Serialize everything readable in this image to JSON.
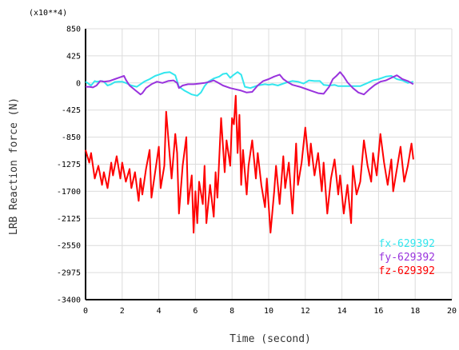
{
  "chart_data": {
    "type": "line",
    "title": "",
    "xlabel": "Time (second)",
    "ylabel": "LRB Reaction force (N)",
    "y_multiplier_label": "(x10**4)",
    "xlim": [
      0,
      20
    ],
    "ylim": [
      -3400,
      850
    ],
    "x_ticks": [
      "0",
      "2",
      "4",
      "6",
      "8",
      "10",
      "12",
      "14",
      "16",
      "18",
      "20"
    ],
    "x_tick_values": [
      0,
      2,
      4,
      6,
      8,
      10,
      12,
      14,
      16,
      18,
      20
    ],
    "y_ticks": [
      "850",
      "425",
      "0",
      "-425",
      "-850",
      "-1275",
      "-1700",
      "-2125",
      "-2550",
      "-2975",
      "-3400"
    ],
    "y_tick_values": [
      850,
      425,
      0,
      -425,
      -850,
      -1275,
      -1700,
      -2125,
      -2550,
      -2975,
      -3400
    ],
    "grid": true,
    "legend_position": "bottom-right",
    "series": [
      {
        "name": "fx-629392",
        "color": "#33e6ee",
        "x": [
          0,
          0.3,
          0.5,
          0.6,
          0.9,
          1.0,
          1.2,
          1.4,
          1.6,
          1.8,
          2.0,
          2.2,
          2.5,
          2.8,
          3.0,
          3.2,
          3.5,
          3.8,
          4.0,
          4.3,
          4.6,
          4.9,
          5.0,
          5.1,
          5.4,
          5.8,
          6.1,
          6.3,
          6.5,
          6.7,
          7.0,
          7.3,
          7.5,
          7.7,
          7.9,
          8.1,
          8.3,
          8.5,
          8.7,
          9.0,
          9.4,
          9.8,
          10.0,
          10.2,
          10.5,
          11.0,
          11.3,
          11.6,
          11.9,
          12.2,
          12.5,
          12.8,
          13.0,
          13.3,
          13.6,
          13.8,
          14.2,
          14.6,
          15.0,
          15.4,
          15.7,
          16.0,
          16.4,
          16.7,
          17.0,
          17.3,
          17.6,
          17.9
        ],
        "y": [
          20,
          -40,
          30,
          20,
          30,
          20,
          -40,
          -20,
          15,
          20,
          20,
          0,
          -40,
          -60,
          -20,
          20,
          60,
          110,
          130,
          160,
          170,
          120,
          30,
          -60,
          -120,
          -180,
          -200,
          -150,
          -50,
          20,
          70,
          100,
          140,
          150,
          80,
          130,
          170,
          130,
          -60,
          -80,
          -40,
          -20,
          -30,
          -20,
          -40,
          10,
          30,
          20,
          -10,
          40,
          30,
          30,
          -30,
          -40,
          -30,
          -50,
          -50,
          -50,
          -50,
          0,
          40,
          60,
          100,
          110,
          60,
          40,
          0,
          20
        ]
      },
      {
        "name": "fy-629392",
        "color": "#9933dd",
        "x": [
          0,
          0.2,
          0.4,
          0.6,
          0.8,
          1.0,
          1.3,
          1.6,
          1.9,
          2.1,
          2.2,
          2.4,
          2.7,
          3.0,
          3.1,
          3.3,
          3.6,
          3.9,
          4.2,
          4.5,
          4.8,
          5.0,
          5.1,
          5.3,
          5.6,
          5.9,
          6.2,
          6.5,
          6.8,
          7.0,
          7.2,
          7.5,
          7.9,
          8.2,
          8.5,
          8.8,
          9.1,
          9.4,
          9.7,
          10.0,
          10.3,
          10.6,
          10.8,
          11.0,
          11.3,
          11.7,
          12.0,
          12.3,
          12.7,
          13.0,
          13.3,
          13.5,
          13.7,
          13.9,
          14.1,
          14.3,
          14.6,
          14.9,
          15.2,
          15.5,
          15.8,
          16.1,
          16.4,
          16.7,
          17.0,
          17.3,
          17.6,
          17.9
        ],
        "y": [
          -60,
          -60,
          -70,
          -40,
          30,
          20,
          30,
          60,
          90,
          110,
          50,
          -40,
          -110,
          -180,
          -160,
          -80,
          -20,
          20,
          0,
          30,
          40,
          0,
          -80,
          -40,
          -20,
          -20,
          -10,
          0,
          20,
          40,
          10,
          -40,
          -80,
          -100,
          -120,
          -150,
          -140,
          -40,
          30,
          60,
          100,
          130,
          60,
          20,
          -30,
          -60,
          -90,
          -120,
          -160,
          -170,
          -60,
          60,
          110,
          170,
          100,
          10,
          -80,
          -150,
          -180,
          -100,
          -30,
          20,
          40,
          80,
          120,
          60,
          30,
          -20
        ]
      },
      {
        "name": "fz-629392",
        "color": "#ff0000",
        "x": [
          0.0,
          0.2,
          0.3,
          0.5,
          0.7,
          0.9,
          1.0,
          1.2,
          1.4,
          1.5,
          1.7,
          1.9,
          2.0,
          2.2,
          2.4,
          2.5,
          2.7,
          2.9,
          3.0,
          3.1,
          3.3,
          3.5,
          3.6,
          3.8,
          4.0,
          4.1,
          4.3,
          4.4,
          4.6,
          4.7,
          4.9,
          5.0,
          5.1,
          5.3,
          5.5,
          5.6,
          5.8,
          5.9,
          6.0,
          6.1,
          6.2,
          6.4,
          6.5,
          6.6,
          6.8,
          7.0,
          7.1,
          7.2,
          7.4,
          7.6,
          7.7,
          7.9,
          8.0,
          8.1,
          8.2,
          8.3,
          8.4,
          8.5,
          8.6,
          8.8,
          8.9,
          9.1,
          9.3,
          9.4,
          9.6,
          9.8,
          9.9,
          10.1,
          10.3,
          10.4,
          10.6,
          10.8,
          10.9,
          11.1,
          11.3,
          11.5,
          11.6,
          11.8,
          12.0,
          12.2,
          12.3,
          12.5,
          12.7,
          12.9,
          13.0,
          13.2,
          13.4,
          13.6,
          13.8,
          13.9,
          14.1,
          14.3,
          14.5,
          14.6,
          14.8,
          15.0,
          15.2,
          15.4,
          15.6,
          15.7,
          15.9,
          16.1,
          16.3,
          16.5,
          16.7,
          16.8,
          17.0,
          17.2,
          17.4,
          17.6,
          17.8,
          17.9
        ],
        "y": [
          -1050,
          -1250,
          -1100,
          -1500,
          -1300,
          -1600,
          -1400,
          -1650,
          -1250,
          -1450,
          -1150,
          -1500,
          -1250,
          -1550,
          -1350,
          -1650,
          -1400,
          -1850,
          -1500,
          -1750,
          -1350,
          -1050,
          -1800,
          -1400,
          -1000,
          -1650,
          -1300,
          -450,
          -1150,
          -1500,
          -800,
          -1100,
          -2050,
          -1300,
          -850,
          -1900,
          -1450,
          -2350,
          -1700,
          -2200,
          -1550,
          -1900,
          -1300,
          -2200,
          -1600,
          -2100,
          -1400,
          -1800,
          -550,
          -1400,
          -900,
          -1300,
          -550,
          -650,
          -200,
          -1100,
          -500,
          -1600,
          -1050,
          -1750,
          -1300,
          -900,
          -1500,
          -1100,
          -1600,
          -1950,
          -1500,
          -2350,
          -1700,
          -1300,
          -1900,
          -1150,
          -1650,
          -1250,
          -2050,
          -950,
          -1600,
          -1250,
          -700,
          -1300,
          -950,
          -1450,
          -1100,
          -1700,
          -1250,
          -2050,
          -1500,
          -1200,
          -1750,
          -1450,
          -2050,
          -1600,
          -2200,
          -1300,
          -1750,
          -1550,
          -900,
          -1300,
          -1550,
          -1100,
          -1450,
          -800,
          -1250,
          -1600,
          -1200,
          -1700,
          -1350,
          -1000,
          -1550,
          -1300,
          -950,
          -1200
        ]
      }
    ]
  }
}
